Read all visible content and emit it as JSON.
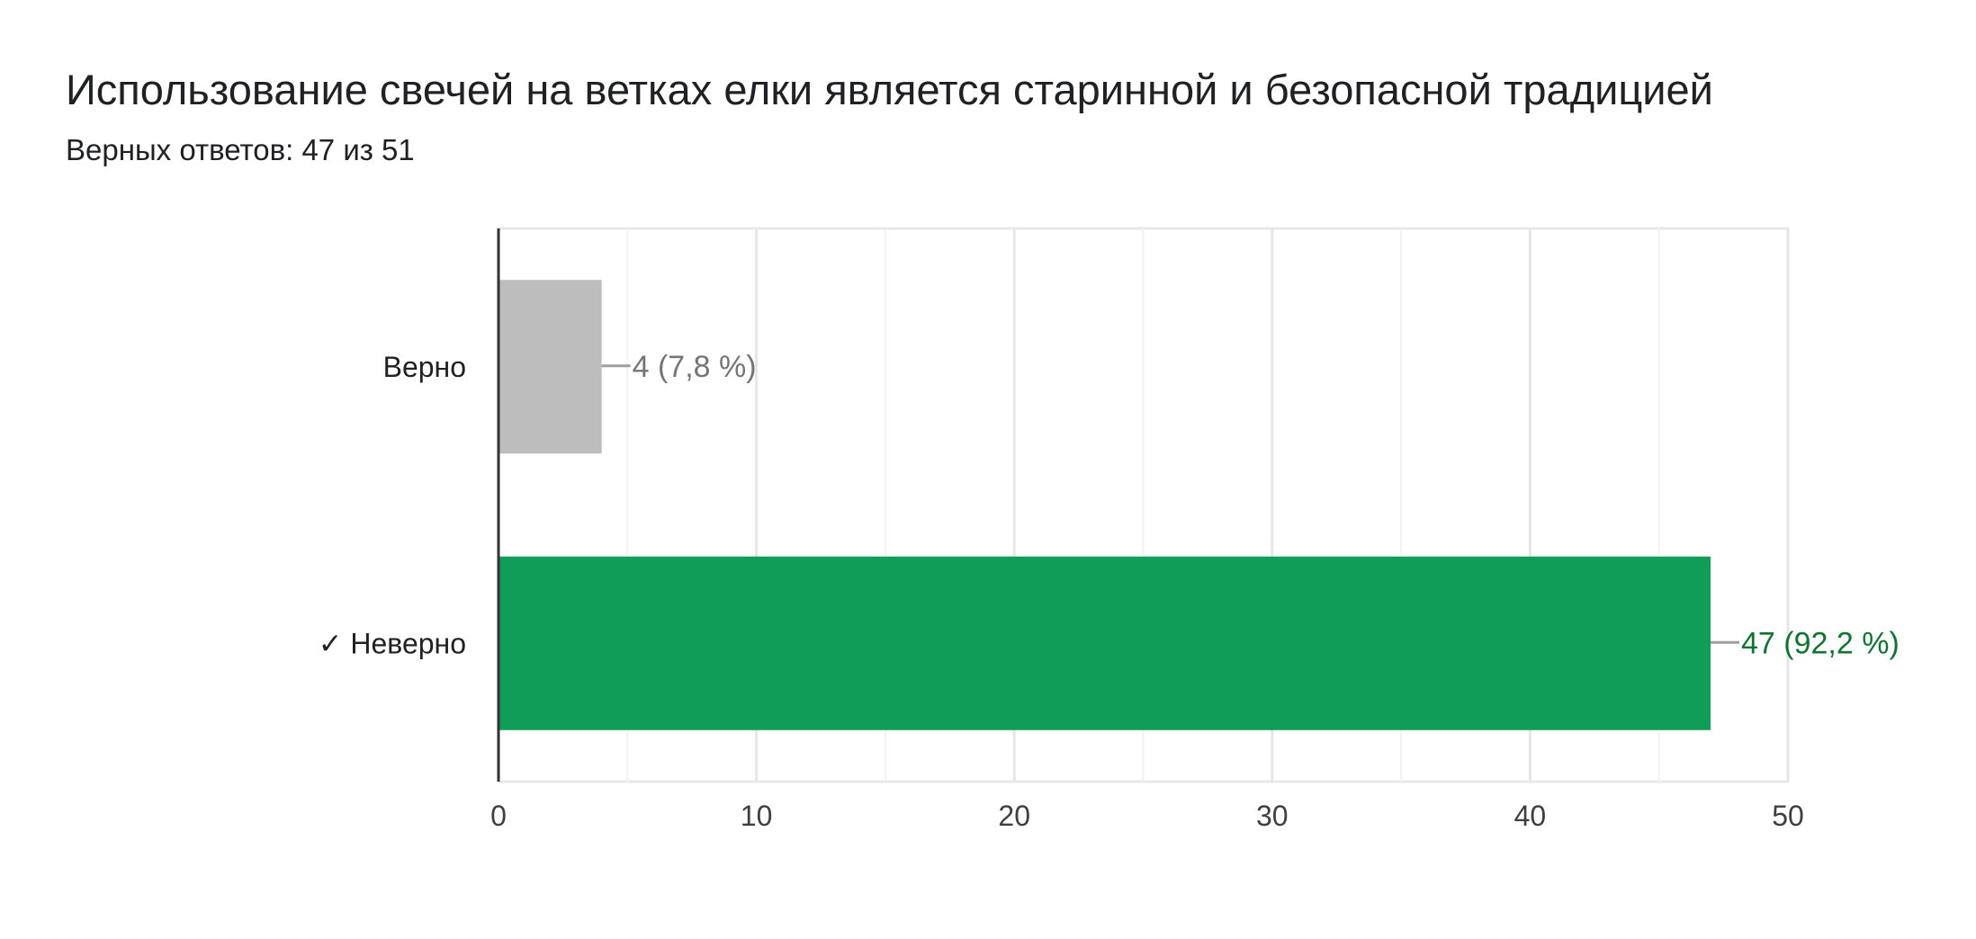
{
  "header": {
    "title": "Использование свечей на ветках елки является старинной и безопасной традицией",
    "subtitle": "Верных ответов: 47 из 51"
  },
  "chart_data": {
    "type": "bar",
    "orientation": "horizontal",
    "categories": [
      "Верно",
      "✓ Неверно"
    ],
    "values": [
      4,
      47
    ],
    "data_labels": [
      "4 (7,8 %)",
      "47 (92,2 %)"
    ],
    "bar_colors": [
      "#bdbdbd",
      "#0f9d58"
    ],
    "label_colors": [
      "#757575",
      "#137333"
    ],
    "xlim": [
      0,
      50
    ],
    "xticks": [
      0,
      10,
      20,
      30,
      40,
      50
    ],
    "grid": true,
    "legend": "none"
  }
}
